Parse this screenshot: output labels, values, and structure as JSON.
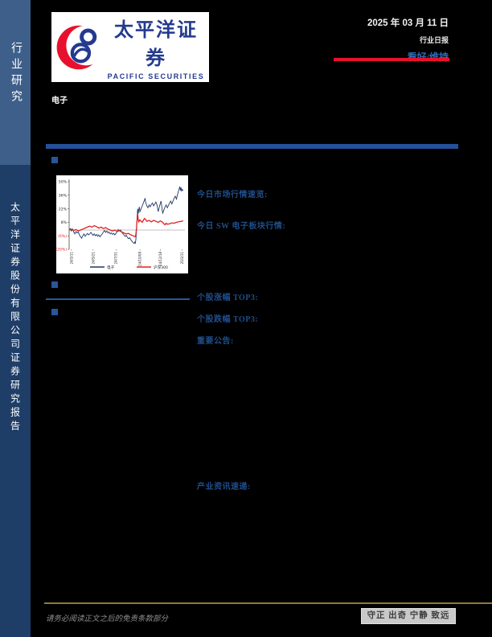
{
  "sidebar": {
    "top_label": "行业研究",
    "bottom_label": "太平洋证券股份有限公司证券研究报告"
  },
  "header": {
    "logo_cn": "太平洋证券",
    "logo_en": "PACIFIC SECURITIES",
    "date": "2025 年 03 月 11 日",
    "report_type": "行业日报",
    "rating": "看好/维持"
  },
  "industry": "电子",
  "sections": {
    "market_overview": "今日市场行情速览:",
    "sw_sector": "今日 SW 电子板块行情:",
    "top_gainers": "个股涨幅 TOP3:",
    "top_losers": "个股跌幅 TOP3:",
    "announcements": "重要公告:",
    "industry_news": "产业资讯速递:"
  },
  "footer": {
    "disclaimer": "请务必阅读正文之后的免责条款部分",
    "motto": "守正 出奇 宁静 致远"
  },
  "colors": {
    "accent_red": "#E8112D",
    "brand_blue": "#233A8F",
    "bar_blue": "#24509A",
    "heading_blue": "#1F4E8C",
    "sidebar_top": "#3E5F8A",
    "sidebar_bottom": "#1E3E68",
    "footer_gold": "#8F7A3D",
    "chart_blue": "#1F3864",
    "chart_red": "#E02020"
  },
  "chart_data": {
    "type": "line",
    "title": "",
    "xlabel": "",
    "ylabel": "",
    "ylim": [
      -20,
      50
    ],
    "grid": false,
    "zero_line": true,
    "legend_position": "bottom",
    "y_ticks": [
      {
        "label": "50%",
        "value": 50,
        "negative": false
      },
      {
        "label": "36%",
        "value": 36,
        "negative": false
      },
      {
        "label": "22%",
        "value": 22,
        "negative": false
      },
      {
        "label": "8%",
        "value": 8,
        "negative": false
      },
      {
        "label": "(6%)",
        "value": -6,
        "negative": true
      },
      {
        "label": "(20%)",
        "value": -20,
        "negative": true
      }
    ],
    "x_ticks": [
      {
        "label": "24/3/11",
        "pos": 0.02
      },
      {
        "label": "24/5/21",
        "pos": 0.21
      },
      {
        "label": "24/7/31",
        "pos": 0.41
      },
      {
        "label": "24/10/08",
        "pos": 0.62
      },
      {
        "label": "24/12/18",
        "pos": 0.8
      },
      {
        "label": "25/3/11",
        "pos": 0.99
      }
    ],
    "series": [
      {
        "name": "电子",
        "color": "#1F3864",
        "width": 0.9,
        "points": [
          [
            0,
            0
          ],
          [
            0.01,
            1.5
          ],
          [
            0.02,
            -1
          ],
          [
            0.03,
            1
          ],
          [
            0.04,
            -2
          ],
          [
            0.05,
            -4
          ],
          [
            0.06,
            -1.5
          ],
          [
            0.07,
            -3
          ],
          [
            0.08,
            -2
          ],
          [
            0.09,
            -5
          ],
          [
            0.1,
            -7
          ],
          [
            0.11,
            -8.5
          ],
          [
            0.12,
            -6
          ],
          [
            0.13,
            -4
          ],
          [
            0.14,
            -6.5
          ],
          [
            0.15,
            -5
          ],
          [
            0.16,
            -3.5
          ],
          [
            0.17,
            -5
          ],
          [
            0.18,
            -4
          ],
          [
            0.19,
            -2.5
          ],
          [
            0.2,
            -4
          ],
          [
            0.21,
            -5.5
          ],
          [
            0.22,
            -4
          ],
          [
            0.23,
            -6
          ],
          [
            0.24,
            -4.5
          ],
          [
            0.25,
            -6.5
          ],
          [
            0.26,
            -5
          ],
          [
            0.27,
            -7
          ],
          [
            0.28,
            -5.5
          ],
          [
            0.29,
            -4
          ],
          [
            0.3,
            -2
          ],
          [
            0.31,
            -0.5
          ],
          [
            0.32,
            -2.5
          ],
          [
            0.33,
            -1
          ],
          [
            0.34,
            -3
          ],
          [
            0.35,
            -2
          ],
          [
            0.36,
            -4
          ],
          [
            0.37,
            -3
          ],
          [
            0.38,
            -4.5
          ],
          [
            0.39,
            -3.5
          ],
          [
            0.4,
            -5
          ],
          [
            0.41,
            -3.5
          ],
          [
            0.42,
            -2
          ],
          [
            0.43,
            0.5
          ],
          [
            0.44,
            -1
          ],
          [
            0.45,
            0
          ],
          [
            0.46,
            -2
          ],
          [
            0.47,
            -3.5
          ],
          [
            0.48,
            -5
          ],
          [
            0.49,
            -6.5
          ],
          [
            0.5,
            -5.5
          ],
          [
            0.51,
            -7.5
          ],
          [
            0.52,
            -9
          ],
          [
            0.53,
            -8
          ],
          [
            0.54,
            -10
          ],
          [
            0.55,
            -11.5
          ],
          [
            0.56,
            -13
          ],
          [
            0.57,
            -14
          ],
          [
            0.575,
            -12.5
          ],
          [
            0.58,
            -13.5
          ],
          [
            0.585,
            -9
          ],
          [
            0.59,
            0
          ],
          [
            0.595,
            12
          ],
          [
            0.6,
            22
          ],
          [
            0.605,
            17
          ],
          [
            0.61,
            21
          ],
          [
            0.615,
            24
          ],
          [
            0.62,
            19
          ],
          [
            0.63,
            22
          ],
          [
            0.64,
            25
          ],
          [
            0.65,
            28
          ],
          [
            0.66,
            31
          ],
          [
            0.665,
            33
          ],
          [
            0.67,
            29
          ],
          [
            0.68,
            25
          ],
          [
            0.69,
            23
          ],
          [
            0.7,
            26
          ],
          [
            0.71,
            24
          ],
          [
            0.72,
            26.5
          ],
          [
            0.73,
            28
          ],
          [
            0.74,
            25
          ],
          [
            0.75,
            27
          ],
          [
            0.76,
            29
          ],
          [
            0.77,
            26
          ],
          [
            0.78,
            19
          ],
          [
            0.79,
            24
          ],
          [
            0.8,
            28
          ],
          [
            0.805,
            30
          ],
          [
            0.81,
            26
          ],
          [
            0.815,
            21
          ],
          [
            0.82,
            17.5
          ],
          [
            0.83,
            21
          ],
          [
            0.84,
            24
          ],
          [
            0.85,
            26
          ],
          [
            0.86,
            23
          ],
          [
            0.87,
            25.5
          ],
          [
            0.88,
            28
          ],
          [
            0.89,
            30
          ],
          [
            0.9,
            27
          ],
          [
            0.91,
            30
          ],
          [
            0.92,
            33
          ],
          [
            0.93,
            35
          ],
          [
            0.94,
            32
          ],
          [
            0.95,
            37
          ],
          [
            0.96,
            41
          ],
          [
            0.97,
            45
          ],
          [
            0.975,
            41
          ],
          [
            0.98,
            44
          ],
          [
            0.985,
            40
          ],
          [
            0.99,
            42
          ],
          [
            1,
            41
          ]
        ]
      },
      {
        "name": "沪深300",
        "color": "#E02020",
        "width": 1.3,
        "points": [
          [
            0,
            0
          ],
          [
            0.02,
            1
          ],
          [
            0.04,
            -0.5
          ],
          [
            0.06,
            0.5
          ],
          [
            0.08,
            -1
          ],
          [
            0.1,
            0
          ],
          [
            0.12,
            1
          ],
          [
            0.14,
            2
          ],
          [
            0.16,
            3
          ],
          [
            0.18,
            4
          ],
          [
            0.2,
            3
          ],
          [
            0.22,
            4.5
          ],
          [
            0.24,
            3.5
          ],
          [
            0.26,
            2
          ],
          [
            0.28,
            3
          ],
          [
            0.3,
            1.5
          ],
          [
            0.32,
            2.5
          ],
          [
            0.34,
            1
          ],
          [
            0.36,
            0
          ],
          [
            0.38,
            -1
          ],
          [
            0.4,
            0
          ],
          [
            0.42,
            -1.5
          ],
          [
            0.44,
            -0.5
          ],
          [
            0.46,
            -2
          ],
          [
            0.48,
            -3
          ],
          [
            0.5,
            -4
          ],
          [
            0.52,
            -3.5
          ],
          [
            0.54,
            -5
          ],
          [
            0.56,
            -6
          ],
          [
            0.57,
            -6.5
          ],
          [
            0.58,
            -7
          ],
          [
            0.585,
            -4
          ],
          [
            0.59,
            2
          ],
          [
            0.595,
            10
          ],
          [
            0.6,
            17.5
          ],
          [
            0.605,
            11
          ],
          [
            0.61,
            8.5
          ],
          [
            0.62,
            10.5
          ],
          [
            0.63,
            9
          ],
          [
            0.64,
            8
          ],
          [
            0.65,
            10
          ],
          [
            0.66,
            12
          ],
          [
            0.67,
            11
          ],
          [
            0.68,
            9
          ],
          [
            0.7,
            10
          ],
          [
            0.72,
            8.5
          ],
          [
            0.74,
            10
          ],
          [
            0.76,
            9
          ],
          [
            0.78,
            8
          ],
          [
            0.8,
            9.5
          ],
          [
            0.82,
            8
          ],
          [
            0.83,
            6.5
          ],
          [
            0.84,
            5.5
          ],
          [
            0.85,
            7
          ],
          [
            0.86,
            6
          ],
          [
            0.88,
            6.5
          ],
          [
            0.9,
            7.5
          ],
          [
            0.92,
            7
          ],
          [
            0.94,
            8
          ],
          [
            0.96,
            8.5
          ],
          [
            0.98,
            9
          ],
          [
            1,
            9.5
          ]
        ]
      }
    ]
  }
}
